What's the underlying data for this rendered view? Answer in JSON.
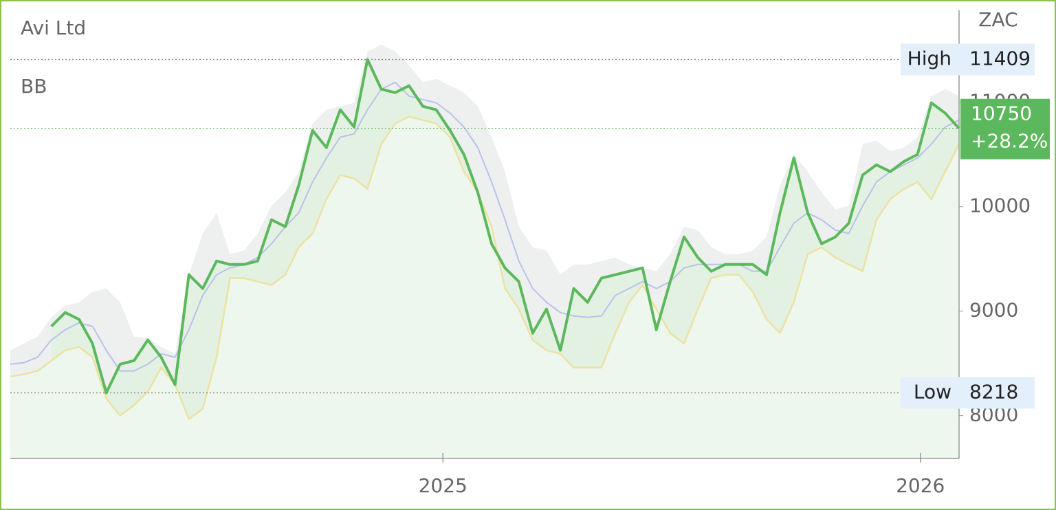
{
  "chart_data": {
    "type": "line",
    "title": "Avi Ltd",
    "indicator": "BB",
    "currency": "ZAC",
    "high": {
      "label": "High",
      "value": 11409
    },
    "low": {
      "label": "Low",
      "value": 8218
    },
    "last": {
      "value": 10750,
      "change": "+28.2%",
      "color": "#5cb85c"
    },
    "x": [
      2024.094,
      2024.122,
      2024.151,
      2024.18,
      2024.209,
      2024.238,
      2024.266,
      2024.295,
      2024.324,
      2024.353,
      2024.382,
      2024.41,
      2024.439,
      2024.468,
      2024.497,
      2024.526,
      2024.554,
      2024.583,
      2024.612,
      2024.641,
      2024.67,
      2024.698,
      2024.727,
      2024.756,
      2024.785,
      2024.814,
      2024.842,
      2024.871,
      2024.9,
      2024.929,
      2024.958,
      2024.986,
      2025.015,
      2025.044,
      2025.073,
      2025.102,
      2025.13,
      2025.159,
      2025.188,
      2025.217,
      2025.246,
      2025.274,
      2025.303,
      2025.332,
      2025.361,
      2025.39,
      2025.418,
      2025.447,
      2025.476,
      2025.505,
      2025.534,
      2025.562,
      2025.591,
      2025.62,
      2025.649,
      2025.678,
      2025.706,
      2025.735,
      2025.764,
      2025.793,
      2025.822,
      2025.85,
      2025.879,
      2025.908,
      2025.937,
      2025.966,
      2025.994,
      2026.023,
      2026.052,
      2026.081
    ],
    "series": [
      {
        "color": "#edf0ef",
        "width": 0,
        "fill": "#edf0ef",
        "values": [
          8625,
          8691,
          8756,
          8941,
          9052,
          9085,
          9184,
          9217,
          9085,
          8756,
          8743,
          8658,
          8592,
          9349,
          9743,
          9941,
          9546,
          9579,
          9743,
          10007,
          10138,
          10336,
          10796,
          10928,
          10961,
          10994,
          11487,
          11553,
          11487,
          11355,
          11191,
          11224,
          11158,
          11092,
          10961,
          10665,
          10336,
          9809,
          9612,
          9579,
          9349,
          9447,
          9447,
          9480,
          9513,
          9447,
          9414,
          9382,
          9546,
          9809,
          9776,
          9612,
          9546,
          9546,
          9579,
          9711,
          10204,
          10500,
          10336,
          10138,
          9974,
          10007,
          10599,
          10632,
          10533,
          10566,
          10665,
          11059,
          11125,
          11059
        ]
      },
      {
        "color": "#b9c2ea",
        "width": 2,
        "values": [
          8493,
          8506,
          8559,
          8724,
          8822,
          8888,
          8855,
          8625,
          8427,
          8427,
          8493,
          8592,
          8559,
          8822,
          9151,
          9349,
          9414,
          9447,
          9513,
          9645,
          9809,
          9941,
          10237,
          10467,
          10665,
          10697,
          10928,
          11125,
          11191,
          11059,
          11026,
          10994,
          10895,
          10763,
          10566,
          10237,
          9875,
          9480,
          9217,
          9085,
          8987,
          8954,
          8941,
          8954,
          9151,
          9217,
          9283,
          9217,
          9283,
          9414,
          9447,
          9447,
          9447,
          9447,
          9382,
          9382,
          9612,
          9842,
          9941,
          9875,
          9776,
          9743,
          10007,
          10237,
          10336,
          10401,
          10467,
          10599,
          10763,
          10829
        ]
      },
      {
        "color": "#5cb85c",
        "width": 4,
        "fill": "#e3f1e3",
        "values": [
          null,
          null,
          null,
          8855,
          8987,
          8921,
          8691,
          8218,
          8493,
          8526,
          8724,
          8559,
          8296,
          9349,
          9217,
          9480,
          9447,
          9447,
          9480,
          9875,
          9809,
          10204,
          10730,
          10566,
          10928,
          10763,
          11409,
          11125,
          11092,
          11158,
          10961,
          10928,
          10730,
          10500,
          10138,
          9645,
          9414,
          9283,
          8789,
          9020,
          8625,
          9217,
          9085,
          9316,
          9349,
          9382,
          9414,
          8822,
          9283,
          9711,
          9513,
          9382,
          9447,
          9447,
          9447,
          9349,
          9941,
          10467,
          9941,
          9645,
          9711,
          9842,
          10303,
          10401,
          10336,
          10434,
          10500,
          10994,
          10895,
          10750
        ]
      },
      {
        "color": "#ece2a2",
        "width": 2.5,
        "fill": "#eef7ee",
        "values": [
          8375,
          8395,
          8427,
          8526,
          8625,
          8658,
          8559,
          8164,
          8000,
          8099,
          8230,
          8460,
          8296,
          7967,
          8066,
          8559,
          9316,
          9316,
          9283,
          9250,
          9349,
          9612,
          9743,
          10072,
          10303,
          10270,
          10171,
          10599,
          10796,
          10862,
          10829,
          10796,
          10665,
          10336,
          10138,
          9809,
          9217,
          9020,
          8724,
          8625,
          8592,
          8460,
          8460,
          8460,
          8789,
          9085,
          9250,
          9020,
          8789,
          8691,
          9020,
          9316,
          9349,
          9349,
          9184,
          8921,
          8789,
          9085,
          9546,
          9612,
          9513,
          9447,
          9382,
          9875,
          10072,
          10171,
          10237,
          10072,
          10336,
          10599
        ]
      }
    ],
    "xlim": [
      2024.094,
      2026.081
    ],
    "xticks": [
      2025,
      2026
    ],
    "ylim": [
      7590,
      11880
    ],
    "yticks": [
      8000,
      9000,
      10000,
      11000
    ]
  }
}
